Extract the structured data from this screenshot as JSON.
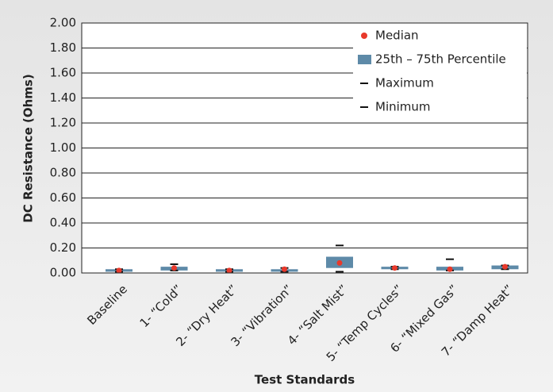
{
  "chart_data": {
    "type": "box",
    "x_label": "Test Standards",
    "y_label": "DC Resistance (Ohms)",
    "categories": [
      "Baseline",
      "1- “Cold”",
      "2- “Dry Heat”",
      "3- “Vibration”",
      "4- “Salt Mist”",
      "5- “Temp Cycles”",
      "6- “Mixed Gas”",
      "7- “Damp Heat”"
    ],
    "series": [
      {
        "name": "Median",
        "color": "#e8392b",
        "values": [
          0.02,
          0.04,
          0.02,
          0.03,
          0.08,
          0.04,
          0.03,
          0.05
        ]
      },
      {
        "name": "25th – 75th Percentile",
        "color": "#5e8aa8",
        "values": [
          [
            0.01,
            0.03
          ],
          [
            0.02,
            0.05
          ],
          [
            0.01,
            0.03
          ],
          [
            0.01,
            0.03
          ],
          [
            0.04,
            0.13
          ],
          [
            0.03,
            0.05
          ],
          [
            0.02,
            0.05
          ],
          [
            0.03,
            0.06
          ]
        ]
      },
      {
        "name": "Maximum",
        "color": "#111111",
        "values": [
          0.03,
          0.07,
          0.03,
          0.04,
          0.22,
          0.05,
          0.11,
          0.06
        ]
      },
      {
        "name": "Minimum",
        "color": "#111111",
        "values": [
          0.01,
          0.02,
          0.01,
          0.01,
          0.01,
          0.03,
          0.02,
          0.03
        ]
      }
    ],
    "ylim": [
      0,
      2
    ],
    "yticks": [
      {
        "value": 0,
        "label": "0.00"
      },
      {
        "value": 0.2,
        "label": "0.20"
      },
      {
        "value": 0.4,
        "label": "0.40"
      },
      {
        "value": 0.6,
        "label": "0.60"
      },
      {
        "value": 0.8,
        "label": "0.80"
      },
      {
        "value": 1,
        "label": "1.00"
      },
      {
        "value": 1.2,
        "label": "1.20"
      },
      {
        "value": 1.4,
        "label": "1.40"
      },
      {
        "value": 1.6,
        "label": "1.60"
      },
      {
        "value": 1.8,
        "label": "1.80"
      },
      {
        "value": 2,
        "label": "2.00"
      }
    ],
    "grid": true,
    "legend": "upper right"
  }
}
